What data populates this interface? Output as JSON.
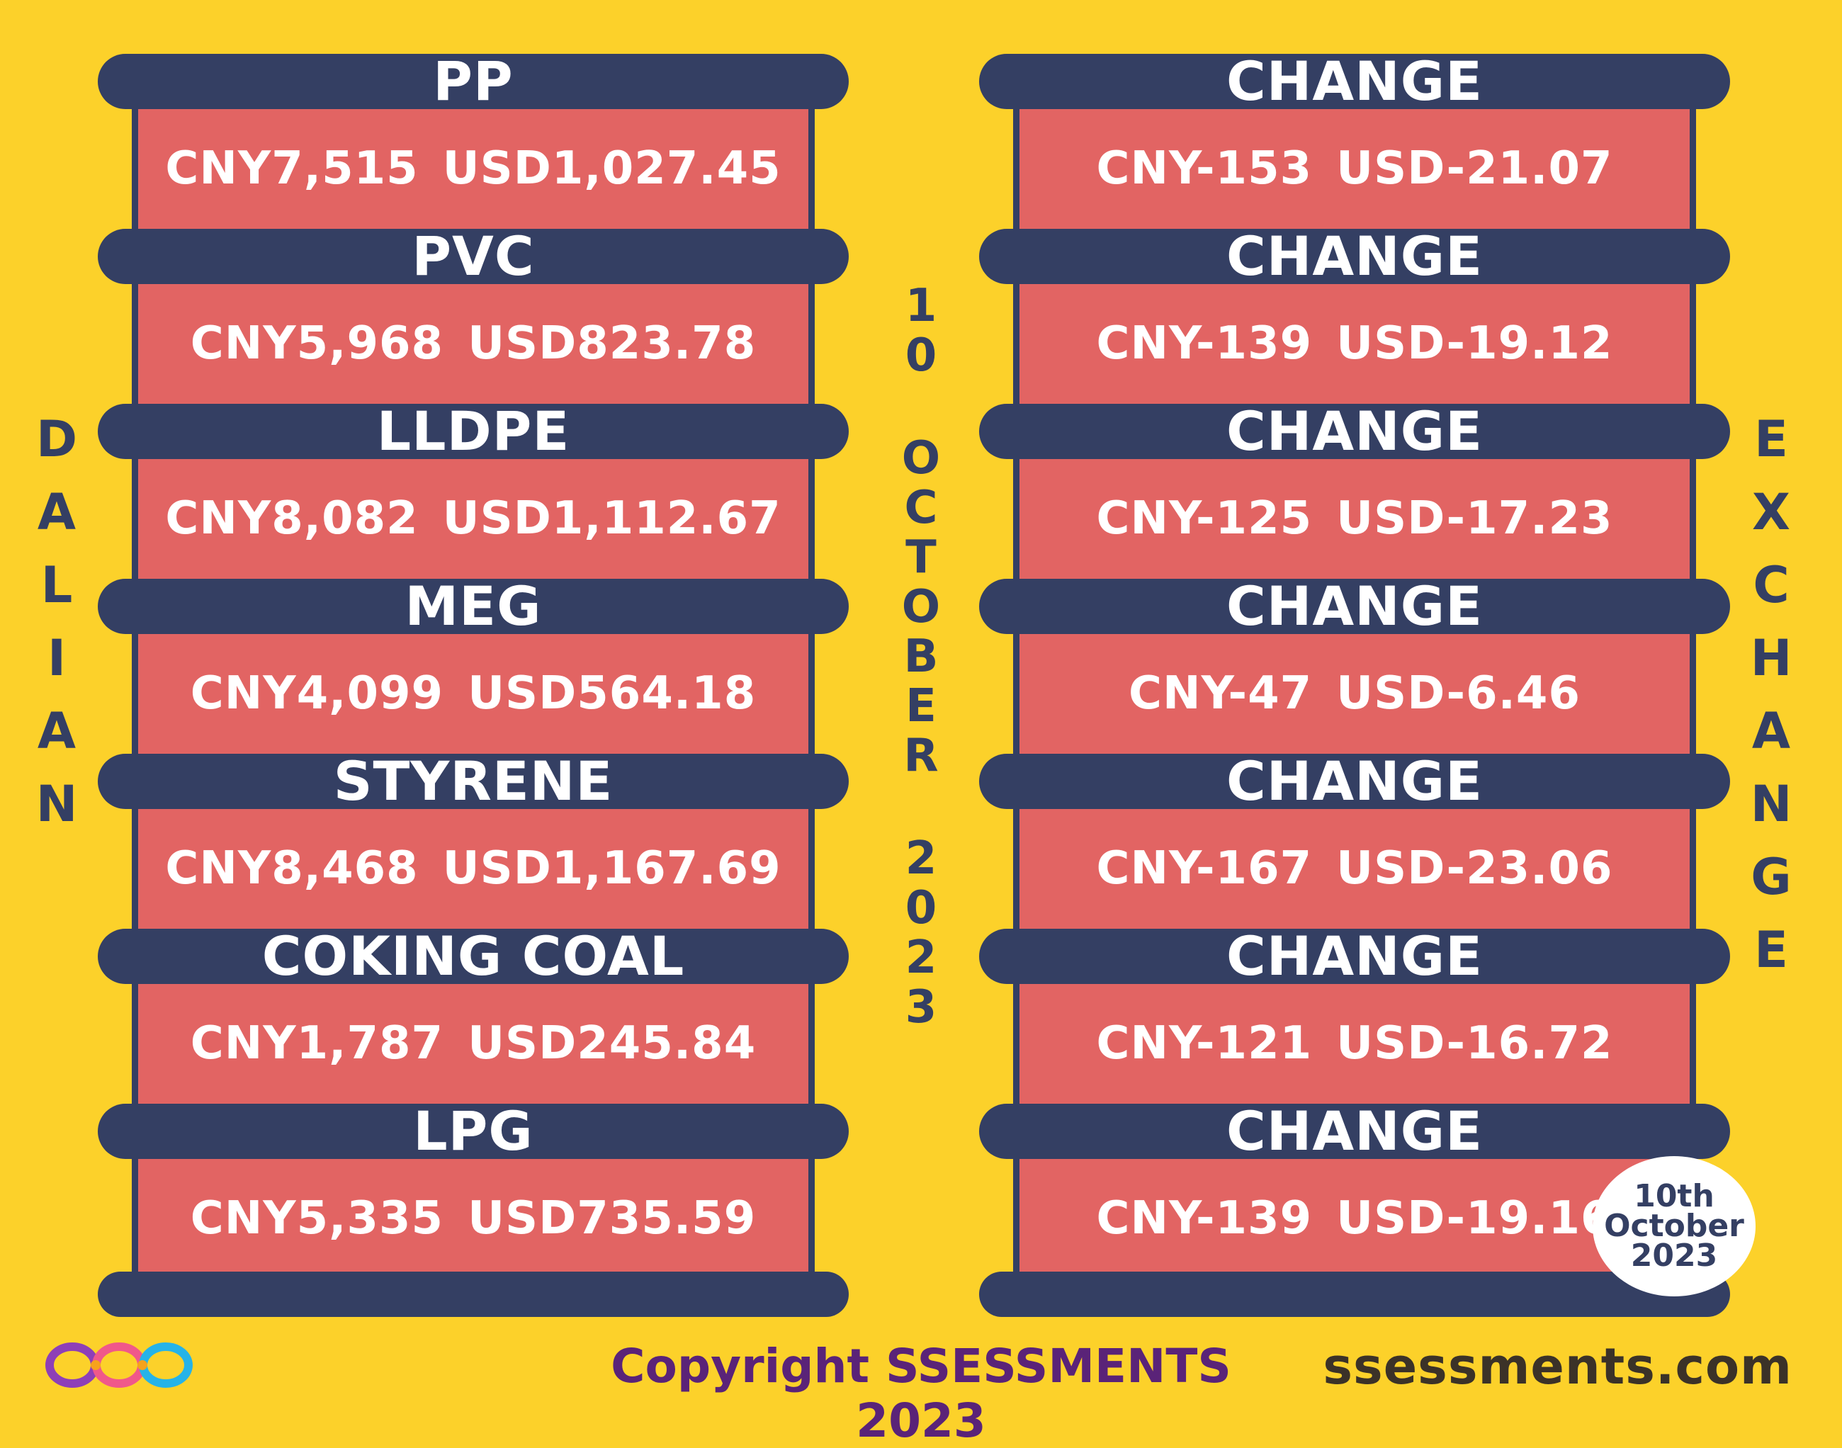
{
  "left_rows": [
    {
      "title": "PP",
      "cny": "CNY7,515",
      "usd": "USD1,027.45"
    },
    {
      "title": "PVC",
      "cny": "CNY5,968",
      "usd": "USD823.78"
    },
    {
      "title": "LLDPE",
      "cny": "CNY8,082",
      "usd": "USD1,112.67"
    },
    {
      "title": "MEG",
      "cny": "CNY4,099",
      "usd": "USD564.18"
    },
    {
      "title": "STYRENE",
      "cny": "CNY8,468",
      "usd": "USD1,167.69"
    },
    {
      "title": "COKING COAL",
      "cny": "CNY1,787",
      "usd": "USD245.84"
    },
    {
      "title": "LPG",
      "cny": "CNY5,335",
      "usd": "USD735.59"
    }
  ],
  "right_rows": [
    {
      "title": "CHANGE",
      "cny": "CNY-153",
      "usd": "USD-21.07"
    },
    {
      "title": "CHANGE",
      "cny": "CNY-139",
      "usd": "USD-19.12"
    },
    {
      "title": "CHANGE",
      "cny": "CNY-125",
      "usd": "USD-17.23"
    },
    {
      "title": "CHANGE",
      "cny": "CNY-47",
      "usd": "USD-6.46"
    },
    {
      "title": "CHANGE",
      "cny": "CNY-167",
      "usd": "USD-23.06"
    },
    {
      "title": "CHANGE",
      "cny": "CNY-121",
      "usd": "USD-16.72"
    },
    {
      "title": "CHANGE",
      "cny": "CNY-139",
      "usd": "USD-19.16"
    }
  ],
  "side_left": "DALIAN",
  "side_right": "EXCHANGE",
  "center_date": [
    "10",
    "OCTOBER",
    "2023"
  ],
  "seal": [
    "10th",
    "October",
    "2023"
  ],
  "copyright": "Copyright SSESSMENTS 2023",
  "site": "ssessments.com",
  "colors": {
    "background": "#fcd12a",
    "bar": "#343f63",
    "panel": "#e26463",
    "text": "#ffffff"
  },
  "logo_icon": "infinity-rings-logo"
}
